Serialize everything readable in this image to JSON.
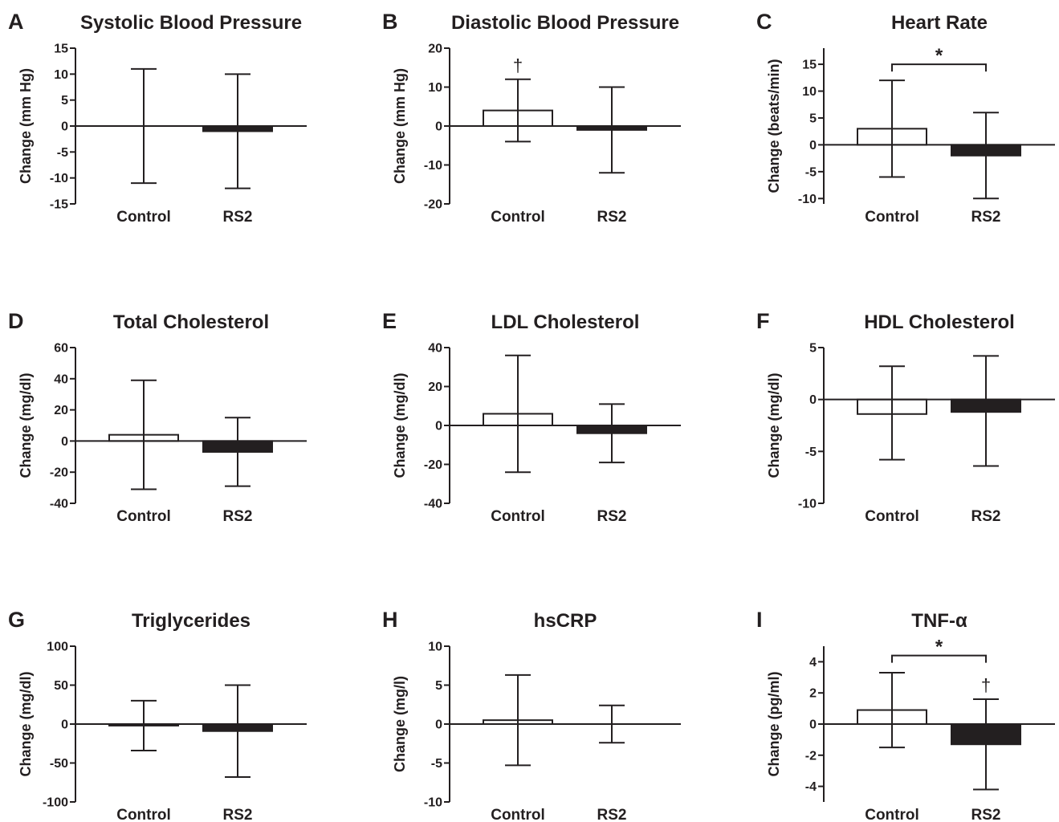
{
  "chart_data": [
    {
      "panel": "A",
      "title": "Systolic Blood Pressure",
      "type": "bar",
      "ylabel": "Change (mm Hg)",
      "ylim": [
        -15,
        15
      ],
      "yticks": [
        15,
        10,
        5,
        0,
        -5,
        -10,
        -15
      ],
      "categories": [
        "Control",
        "RS2"
      ],
      "values": [
        0,
        -1
      ],
      "err_upper": [
        11,
        10
      ],
      "err_lower": [
        -11,
        -12
      ],
      "fills": [
        "#ffffff",
        "#231f20"
      ],
      "sig_bracket": null,
      "dagger_on": null
    },
    {
      "panel": "B",
      "title": "Diastolic Blood Pressure",
      "type": "bar",
      "ylabel": "Change (mm Hg)",
      "ylim": [
        -20,
        20
      ],
      "yticks": [
        20,
        10,
        0,
        -10,
        -20
      ],
      "categories": [
        "Control",
        "RS2"
      ],
      "values": [
        4,
        -1
      ],
      "err_upper": [
        12,
        10
      ],
      "err_lower": [
        -4,
        -12
      ],
      "fills": [
        "#ffffff",
        "#231f20"
      ],
      "sig_bracket": null,
      "dagger_on": 0,
      "dagger_text": "†"
    },
    {
      "panel": "C",
      "title": "Heart Rate",
      "type": "bar",
      "ylabel": "Change (beats/min)",
      "ylim": [
        -11,
        18
      ],
      "yticks": [
        15,
        10,
        5,
        0,
        -5,
        -10
      ],
      "categories": [
        "Control",
        "RS2"
      ],
      "values": [
        3,
        -2
      ],
      "err_upper": [
        12,
        6
      ],
      "err_lower": [
        -6,
        -10
      ],
      "fills": [
        "#ffffff",
        "#231f20"
      ],
      "sig_bracket": 15,
      "sig_text": "*",
      "dagger_on": null
    },
    {
      "panel": "D",
      "title": "Total Cholesterol",
      "type": "bar",
      "ylabel": "Change (mg/dl)",
      "ylim": [
        -40,
        60
      ],
      "yticks": [
        60,
        40,
        20,
        0,
        -20,
        -40
      ],
      "categories": [
        "Control",
        "RS2"
      ],
      "values": [
        4,
        -7
      ],
      "err_upper": [
        39,
        15
      ],
      "err_lower": [
        -31,
        -29
      ],
      "fills": [
        "#ffffff",
        "#231f20"
      ],
      "sig_bracket": null,
      "dagger_on": null
    },
    {
      "panel": "E",
      "title": "LDL Cholesterol",
      "type": "bar",
      "ylabel": "Change (mg/dl)",
      "ylim": [
        -40,
        40
      ],
      "yticks": [
        40,
        20,
        0,
        -20,
        -40
      ],
      "categories": [
        "Control",
        "RS2"
      ],
      "values": [
        6,
        -4
      ],
      "err_upper": [
        36,
        11
      ],
      "err_lower": [
        -24,
        -19
      ],
      "fills": [
        "#ffffff",
        "#231f20"
      ],
      "sig_bracket": null,
      "dagger_on": null
    },
    {
      "panel": "F",
      "title": "HDL Cholesterol",
      "type": "bar",
      "ylabel": "Change (mg/dl)",
      "ylim": [
        -10,
        5
      ],
      "yticks": [
        5,
        0,
        -5,
        -10
      ],
      "categories": [
        "Control",
        "RS2"
      ],
      "values": [
        -1.4,
        -1.2
      ],
      "err_upper": [
        3.2,
        4.2
      ],
      "err_lower": [
        -5.8,
        -6.4
      ],
      "fills": [
        "#ffffff",
        "#231f20"
      ],
      "sig_bracket": null,
      "dagger_on": null
    },
    {
      "panel": "G",
      "title": "Triglycerides",
      "type": "bar",
      "ylabel": "Change (mg/dl)",
      "ylim": [
        -100,
        100
      ],
      "yticks": [
        100,
        50,
        0,
        -50,
        -100
      ],
      "categories": [
        "Control",
        "RS2"
      ],
      "values": [
        -2,
        -9
      ],
      "err_upper": [
        30,
        50
      ],
      "err_lower": [
        -34,
        -68
      ],
      "fills": [
        "#ffffff",
        "#231f20"
      ],
      "sig_bracket": null,
      "dagger_on": null
    },
    {
      "panel": "H",
      "title": "hsCRP",
      "type": "bar",
      "ylabel": "Change (mg/l)",
      "ylim": [
        -10,
        10
      ],
      "yticks": [
        10,
        5,
        0,
        -5,
        -10
      ],
      "categories": [
        "Control",
        "RS2"
      ],
      "values": [
        0.5,
        0
      ],
      "err_upper": [
        6.3,
        2.4
      ],
      "err_lower": [
        -5.3,
        -2.4
      ],
      "fills": [
        "#ffffff",
        "#231f20"
      ],
      "sig_bracket": null,
      "dagger_on": null
    },
    {
      "panel": "I",
      "title": "TNF-α",
      "type": "bar",
      "ylabel": "Change (pg/ml)",
      "ylim": [
        -5,
        5
      ],
      "yticks": [
        4,
        2,
        0,
        -2,
        -4
      ],
      "categories": [
        "Control",
        "RS2"
      ],
      "values": [
        0.9,
        -1.3
      ],
      "err_upper": [
        3.3,
        1.6
      ],
      "err_lower": [
        -1.5,
        -4.2
      ],
      "fills": [
        "#ffffff",
        "#231f20"
      ],
      "sig_bracket": 4.4,
      "sig_text": "*",
      "dagger_on": 1,
      "dagger_text": "†"
    }
  ]
}
